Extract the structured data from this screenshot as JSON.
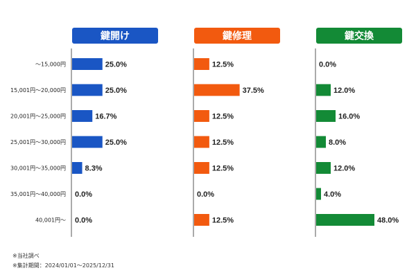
{
  "chart_data": {
    "type": "bar",
    "orientation": "horizontal",
    "categories": [
      "～15,000円",
      "15,001円～20,000円",
      "20,001円～25,000円",
      "25,001円～30,000円",
      "30,001円～35,000円",
      "35,001円～40,000円",
      "40,001円～"
    ],
    "series": [
      {
        "name": "鍵開け",
        "color": "#1a56c4",
        "values": [
          25.0,
          25.0,
          16.7,
          25.0,
          8.3,
          0.0,
          0.0
        ]
      },
      {
        "name": "鍵修理",
        "color": "#f25a0f",
        "values": [
          12.5,
          37.5,
          12.5,
          12.5,
          12.5,
          0.0,
          12.5
        ]
      },
      {
        "name": "鍵交換",
        "color": "#138a36",
        "values": [
          0.0,
          12.0,
          16.0,
          8.0,
          12.0,
          4.0,
          48.0
        ]
      }
    ],
    "value_format": "%",
    "grid": false
  },
  "footnotes": [
    "※当社調べ",
    "※集計期間：2024/01/01～2025/12/31"
  ]
}
